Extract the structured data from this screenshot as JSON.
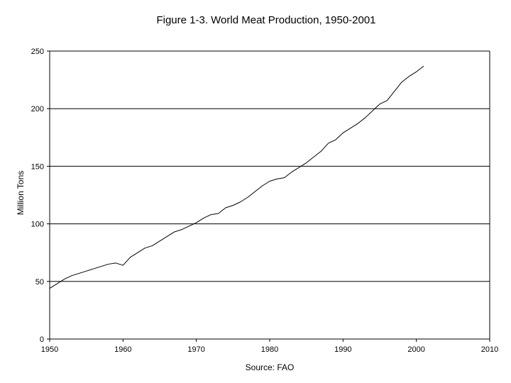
{
  "chart_data": {
    "type": "line",
    "title": "Figure 1-3. World Meat Production, 1950-2001",
    "xlabel": "Source: FAO",
    "ylabel": "Million Tons",
    "xlim": [
      1950,
      2010
    ],
    "ylim": [
      0,
      250
    ],
    "xticks": [
      1950,
      1960,
      1970,
      1980,
      1990,
      2000,
      2010
    ],
    "yticks": [
      0,
      50,
      100,
      150,
      200,
      250
    ],
    "grid": "horizontal",
    "legend": "none",
    "line_color": "#000000",
    "series": [
      {
        "x": [
          1950,
          1951,
          1952,
          1953,
          1954,
          1955,
          1956,
          1957,
          1958,
          1959,
          1960,
          1961,
          1962,
          1963,
          1964,
          1965,
          1966,
          1967,
          1968,
          1969,
          1970,
          1971,
          1972,
          1973,
          1974,
          1975,
          1976,
          1977,
          1978,
          1979,
          1980,
          1981,
          1982,
          1983,
          1984,
          1985,
          1986,
          1987,
          1988,
          1989,
          1990,
          1991,
          1992,
          1993,
          1994,
          1995,
          1996,
          1997,
          1998,
          1999,
          2000,
          2001
        ],
        "values": [
          44,
          48,
          52,
          55,
          57,
          59,
          61,
          63,
          65,
          66,
          64,
          71,
          75,
          79,
          81,
          85,
          89,
          93,
          95,
          98,
          101,
          105,
          108,
          109,
          114,
          116,
          119,
          123,
          128,
          133,
          137,
          139,
          140,
          145,
          149,
          153,
          158,
          163,
          170,
          173,
          179,
          183,
          187,
          192,
          198,
          204,
          207,
          215,
          223,
          228,
          232,
          237
        ]
      }
    ]
  }
}
